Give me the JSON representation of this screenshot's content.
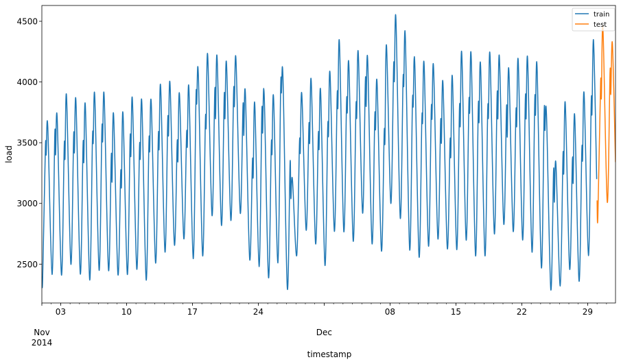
{
  "chart_data": {
    "type": "line",
    "title": "",
    "xlabel": "timestamp",
    "ylabel": "load",
    "xlim": [
      "2014-11-01T00:00",
      "2014-12-31T23:00"
    ],
    "ylim": [
      2180,
      4630
    ],
    "grid": false,
    "legend_position": "top-right",
    "y_ticks": [
      {
        "value": 2500,
        "label": "2500"
      },
      {
        "value": 3000,
        "label": "3000"
      },
      {
        "value": 3500,
        "label": "3500"
      },
      {
        "value": 4000,
        "label": "4000"
      },
      {
        "value": 4500,
        "label": "4500"
      }
    ],
    "x_major_ticks": [
      {
        "date": "2014-11-03",
        "label": "03"
      },
      {
        "date": "2014-11-10",
        "label": "10"
      },
      {
        "date": "2014-11-17",
        "label": "17"
      },
      {
        "date": "2014-11-24",
        "label": "24"
      },
      {
        "date": "2014-12-08",
        "label": "08"
      },
      {
        "date": "2014-12-15",
        "label": "15"
      },
      {
        "date": "2014-12-22",
        "label": "22"
      },
      {
        "date": "2014-12-29",
        "label": "29"
      }
    ],
    "x_month_ticks": [
      {
        "date": "2014-11-01",
        "label": "Nov",
        "year": "2014"
      },
      {
        "date": "2014-12-01",
        "label": "Dec",
        "year": ""
      }
    ],
    "series": [
      {
        "name": "train",
        "color": "#1f77b4",
        "points": [
          [
            "2014-11-01T00:00",
            2400
          ],
          [
            "2014-11-01T02:00",
            2380
          ],
          [
            "2014-11-01T09:00",
            3460
          ],
          [
            "2014-11-01T11:00",
            3400
          ],
          [
            "2014-11-01T15:00",
            3640
          ],
          [
            "2014-11-02T02:00",
            2415
          ],
          [
            "2014-11-02T09:00",
            3570
          ],
          [
            "2014-11-02T11:00",
            3400
          ],
          [
            "2014-11-02T15:00",
            3710
          ],
          [
            "2014-11-03T02:00",
            2410
          ],
          [
            "2014-11-03T09:00",
            3470
          ],
          [
            "2014-11-03T11:00",
            3370
          ],
          [
            "2014-11-03T15:00",
            3880
          ],
          [
            "2014-11-04T02:00",
            2500
          ],
          [
            "2014-11-04T09:00",
            3550
          ],
          [
            "2014-11-04T11:00",
            3420
          ],
          [
            "2014-11-04T15:00",
            3840
          ],
          [
            "2014-11-05T02:00",
            2420
          ],
          [
            "2014-11-05T09:00",
            3480
          ],
          [
            "2014-11-05T11:00",
            3340
          ],
          [
            "2014-11-05T15:00",
            3800
          ],
          [
            "2014-11-06T02:00",
            2370
          ],
          [
            "2014-11-06T09:00",
            3530
          ],
          [
            "2014-11-06T11:00",
            3500
          ],
          [
            "2014-11-06T15:00",
            3880
          ],
          [
            "2014-11-07T02:00",
            2450
          ],
          [
            "2014-11-07T09:00",
            3600
          ],
          [
            "2014-11-07T11:00",
            3510
          ],
          [
            "2014-11-07T15:00",
            3880
          ],
          [
            "2014-11-08T02:00",
            2450
          ],
          [
            "2014-11-08T09:00",
            3390
          ],
          [
            "2014-11-08T11:00",
            3180
          ],
          [
            "2014-11-08T15:00",
            3730
          ],
          [
            "2014-11-09T02:00",
            2415
          ],
          [
            "2014-11-09T09:00",
            3250
          ],
          [
            "2014-11-09T11:00",
            3140
          ],
          [
            "2014-11-09T15:00",
            3740
          ],
          [
            "2014-11-10T02:00",
            2415
          ],
          [
            "2014-11-10T09:00",
            3530
          ],
          [
            "2014-11-10T11:00",
            3390
          ],
          [
            "2014-11-10T15:00",
            3850
          ],
          [
            "2014-11-11T02:00",
            2460
          ],
          [
            "2014-11-11T09:00",
            3460
          ],
          [
            "2014-11-11T11:00",
            3370
          ],
          [
            "2014-11-11T15:00",
            3830
          ],
          [
            "2014-11-12T02:00",
            2370
          ],
          [
            "2014-11-12T09:00",
            3500
          ],
          [
            "2014-11-12T11:00",
            3430
          ],
          [
            "2014-11-12T15:00",
            3830
          ],
          [
            "2014-11-13T02:00",
            2510
          ],
          [
            "2014-11-13T09:00",
            3550
          ],
          [
            "2014-11-13T11:00",
            3450
          ],
          [
            "2014-11-13T15:00",
            3960
          ],
          [
            "2014-11-14T02:00",
            2600
          ],
          [
            "2014-11-14T09:00",
            3680
          ],
          [
            "2014-11-14T11:00",
            3560
          ],
          [
            "2014-11-14T15:00",
            3980
          ],
          [
            "2014-11-15T02:00",
            2660
          ],
          [
            "2014-11-15T09:00",
            3500
          ],
          [
            "2014-11-15T11:00",
            3350
          ],
          [
            "2014-11-15T15:00",
            3900
          ],
          [
            "2014-11-16T02:00",
            2710
          ],
          [
            "2014-11-16T09:00",
            3570
          ],
          [
            "2014-11-16T11:00",
            3470
          ],
          [
            "2014-11-16T15:00",
            3950
          ],
          [
            "2014-11-17T02:00",
            2545
          ],
          [
            "2014-11-17T09:00",
            3860
          ],
          [
            "2014-11-17T11:00",
            3820
          ],
          [
            "2014-11-17T15:00",
            4070
          ],
          [
            "2014-11-18T02:00",
            2570
          ],
          [
            "2014-11-18T09:00",
            3680
          ],
          [
            "2014-11-18T11:00",
            3630
          ],
          [
            "2014-11-18T15:00",
            4220
          ],
          [
            "2014-11-19T02:00",
            2900
          ],
          [
            "2014-11-19T09:00",
            3930
          ],
          [
            "2014-11-19T11:00",
            3700
          ],
          [
            "2014-11-19T15:00",
            4200
          ],
          [
            "2014-11-20T02:00",
            2820
          ],
          [
            "2014-11-20T09:00",
            3880
          ],
          [
            "2014-11-20T11:00",
            3700
          ],
          [
            "2014-11-20T15:00",
            4150
          ],
          [
            "2014-11-21T02:00",
            2860
          ],
          [
            "2014-11-21T09:00",
            3920
          ],
          [
            "2014-11-21T11:00",
            3800
          ],
          [
            "2014-11-21T15:00",
            4190
          ],
          [
            "2014-11-22T02:00",
            2920
          ],
          [
            "2014-11-22T09:00",
            3810
          ],
          [
            "2014-11-22T11:00",
            3560
          ],
          [
            "2014-11-22T15:00",
            3910
          ],
          [
            "2014-11-23T02:00",
            2540
          ],
          [
            "2014-11-23T09:00",
            3350
          ],
          [
            "2014-11-23T11:00",
            3220
          ],
          [
            "2014-11-23T15:00",
            3820
          ],
          [
            "2014-11-24T02:00",
            2480
          ],
          [
            "2014-11-24T09:00",
            3750
          ],
          [
            "2014-11-24T11:00",
            3580
          ],
          [
            "2014-11-24T15:00",
            3900
          ],
          [
            "2014-11-25T02:00",
            2390
          ],
          [
            "2014-11-25T09:00",
            3470
          ],
          [
            "2014-11-25T11:00",
            3410
          ],
          [
            "2014-11-25T15:00",
            3870
          ],
          [
            "2014-11-26T02:00",
            2510
          ],
          [
            "2014-11-26T09:00",
            3950
          ],
          [
            "2014-11-26T11:00",
            3910
          ],
          [
            "2014-11-26T15:00",
            4030
          ],
          [
            "2014-11-27T02:00",
            2300
          ],
          [
            "2014-11-27T09:00",
            3330
          ],
          [
            "2014-11-27T11:00",
            3040
          ],
          [
            "2014-11-27T15:00",
            3200
          ],
          [
            "2014-11-28T02:00",
            2570
          ],
          [
            "2014-11-28T09:00",
            3500
          ],
          [
            "2014-11-28T11:00",
            3420
          ],
          [
            "2014-11-28T15:00",
            3900
          ],
          [
            "2014-11-29T02:00",
            2780
          ],
          [
            "2014-11-29T09:00",
            3640
          ],
          [
            "2014-11-29T11:00",
            3500
          ],
          [
            "2014-11-29T15:00",
            4010
          ],
          [
            "2014-11-30T02:00",
            2670
          ],
          [
            "2014-11-30T09:00",
            3560
          ],
          [
            "2014-11-30T11:00",
            3450
          ],
          [
            "2014-11-30T15:00",
            3920
          ],
          [
            "2014-12-01T02:00",
            2490
          ],
          [
            "2014-12-01T09:00",
            3620
          ],
          [
            "2014-12-01T11:00",
            3560
          ],
          [
            "2014-12-01T15:00",
            4070
          ],
          [
            "2014-12-02T02:00",
            2770
          ],
          [
            "2014-12-02T09:00",
            3880
          ],
          [
            "2014-12-02T11:00",
            3790
          ],
          [
            "2014-12-02T15:00",
            4320
          ],
          [
            "2014-12-03T02:00",
            2770
          ],
          [
            "2014-12-03T09:00",
            3830
          ],
          [
            "2014-12-03T11:00",
            3750
          ],
          [
            "2014-12-03T15:00",
            4140
          ],
          [
            "2014-12-04T02:00",
            2690
          ],
          [
            "2014-12-04T09:00",
            3790
          ],
          [
            "2014-12-04T11:00",
            3710
          ],
          [
            "2014-12-04T15:00",
            4240
          ],
          [
            "2014-12-05T02:00",
            2920
          ],
          [
            "2014-12-05T09:00",
            4010
          ],
          [
            "2014-12-05T11:00",
            3800
          ],
          [
            "2014-12-05T15:00",
            4180
          ],
          [
            "2014-12-06T02:00",
            2670
          ],
          [
            "2014-12-06T09:00",
            3710
          ],
          [
            "2014-12-06T11:00",
            3610
          ],
          [
            "2014-12-06T15:00",
            3990
          ],
          [
            "2014-12-07T02:00",
            2610
          ],
          [
            "2014-12-07T09:00",
            3580
          ],
          [
            "2014-12-07T11:00",
            3510
          ],
          [
            "2014-12-07T15:00",
            4300
          ],
          [
            "2014-12-08T02:00",
            3000
          ],
          [
            "2014-12-08T09:00",
            4120
          ],
          [
            "2014-12-08T11:00",
            4010
          ],
          [
            "2014-12-08T15:00",
            4520
          ],
          [
            "2014-12-09T02:00",
            2880
          ],
          [
            "2014-12-09T09:00",
            4000
          ],
          [
            "2014-12-09T11:00",
            3970
          ],
          [
            "2014-12-09T15:00",
            4370
          ],
          [
            "2014-12-10T02:00",
            2620
          ],
          [
            "2014-12-10T09:00",
            3820
          ],
          [
            "2014-12-10T11:00",
            3800
          ],
          [
            "2014-12-10T15:00",
            4160
          ],
          [
            "2014-12-11T02:00",
            2560
          ],
          [
            "2014-12-11T09:00",
            3680
          ],
          [
            "2014-12-11T11:00",
            3670
          ],
          [
            "2014-12-11T15:00",
            4140
          ],
          [
            "2014-12-12T02:00",
            2650
          ],
          [
            "2014-12-12T09:00",
            3760
          ],
          [
            "2014-12-12T11:00",
            3700
          ],
          [
            "2014-12-12T15:00",
            4120
          ],
          [
            "2014-12-13T02:00",
            2710
          ],
          [
            "2014-12-13T09:00",
            3670
          ],
          [
            "2014-12-13T11:00",
            3500
          ],
          [
            "2014-12-13T15:00",
            3990
          ],
          [
            "2014-12-14T02:00",
            2630
          ],
          [
            "2014-12-14T09:00",
            3510
          ],
          [
            "2014-12-14T11:00",
            3390
          ],
          [
            "2014-12-14T15:00",
            4040
          ],
          [
            "2014-12-15T02:00",
            2620
          ],
          [
            "2014-12-15T09:00",
            3780
          ],
          [
            "2014-12-15T11:00",
            3640
          ],
          [
            "2014-12-15T15:00",
            4230
          ],
          [
            "2014-12-16T02:00",
            2700
          ],
          [
            "2014-12-16T09:00",
            3820
          ],
          [
            "2014-12-16T11:00",
            3750
          ],
          [
            "2014-12-16T15:00",
            4210
          ],
          [
            "2014-12-17T02:00",
            2570
          ],
          [
            "2014-12-17T09:00",
            3790
          ],
          [
            "2014-12-17T11:00",
            3670
          ],
          [
            "2014-12-17T15:00",
            4130
          ],
          [
            "2014-12-18T02:00",
            2570
          ],
          [
            "2014-12-18T09:00",
            3760
          ],
          [
            "2014-12-18T11:00",
            3710
          ],
          [
            "2014-12-18T15:00",
            4220
          ],
          [
            "2014-12-19T02:00",
            2750
          ],
          [
            "2014-12-19T09:00",
            3890
          ],
          [
            "2014-12-19T11:00",
            3700
          ],
          [
            "2014-12-19T15:00",
            4200
          ],
          [
            "2014-12-20T02:00",
            2830
          ],
          [
            "2014-12-20T09:00",
            3790
          ],
          [
            "2014-12-20T11:00",
            3550
          ],
          [
            "2014-12-20T15:00",
            4100
          ],
          [
            "2014-12-21T02:00",
            2770
          ],
          [
            "2014-12-21T09:00",
            3750
          ],
          [
            "2014-12-21T11:00",
            3640
          ],
          [
            "2014-12-21T15:00",
            4170
          ],
          [
            "2014-12-22T02:00",
            2700
          ],
          [
            "2014-12-22T09:00",
            3860
          ],
          [
            "2014-12-22T11:00",
            3700
          ],
          [
            "2014-12-22T15:00",
            4180
          ],
          [
            "2014-12-23T02:00",
            2600
          ],
          [
            "2014-12-23T09:00",
            3840
          ],
          [
            "2014-12-23T11:00",
            3730
          ],
          [
            "2014-12-23T15:00",
            4120
          ],
          [
            "2014-12-24T02:00",
            2470
          ],
          [
            "2014-12-24T09:00",
            3750
          ],
          [
            "2014-12-24T11:00",
            3600
          ],
          [
            "2014-12-24T15:00",
            3730
          ],
          [
            "2014-12-25T02:00",
            2290
          ],
          [
            "2014-12-25T09:00",
            3270
          ],
          [
            "2014-12-25T11:00",
            3010
          ],
          [
            "2014-12-25T15:00",
            3330
          ],
          [
            "2014-12-26T02:00",
            2320
          ],
          [
            "2014-12-26T09:00",
            3390
          ],
          [
            "2014-12-26T11:00",
            3250
          ],
          [
            "2014-12-26T15:00",
            3820
          ],
          [
            "2014-12-27T02:00",
            2460
          ],
          [
            "2014-12-27T09:00",
            3360
          ],
          [
            "2014-12-27T11:00",
            3170
          ],
          [
            "2014-12-27T15:00",
            3720
          ],
          [
            "2014-12-28T02:00",
            2360
          ],
          [
            "2014-12-28T09:00",
            3430
          ],
          [
            "2014-12-28T11:00",
            3360
          ],
          [
            "2014-12-28T15:00",
            3900
          ],
          [
            "2014-12-29T02:00",
            2570
          ],
          [
            "2014-12-29T09:00",
            3830
          ],
          [
            "2014-12-29T11:00",
            3740
          ],
          [
            "2014-12-29T15:00",
            4340
          ],
          [
            "2014-12-29T23:00",
            3200
          ]
        ]
      },
      {
        "name": "test",
        "color": "#ff7f0e",
        "points": [
          [
            "2014-12-30T00:00",
            3025
          ],
          [
            "2014-12-30T02:00",
            2890
          ],
          [
            "2014-12-30T09:00",
            3990
          ],
          [
            "2014-12-30T11:00",
            3870
          ],
          [
            "2014-12-30T15:00",
            4440
          ],
          [
            "2014-12-31T02:00",
            3010
          ],
          [
            "2014-12-31T09:00",
            4080
          ],
          [
            "2014-12-31T11:00",
            3900
          ],
          [
            "2014-12-31T15:00",
            4320
          ],
          [
            "2014-12-31T23:00",
            3340
          ]
        ]
      }
    ]
  }
}
